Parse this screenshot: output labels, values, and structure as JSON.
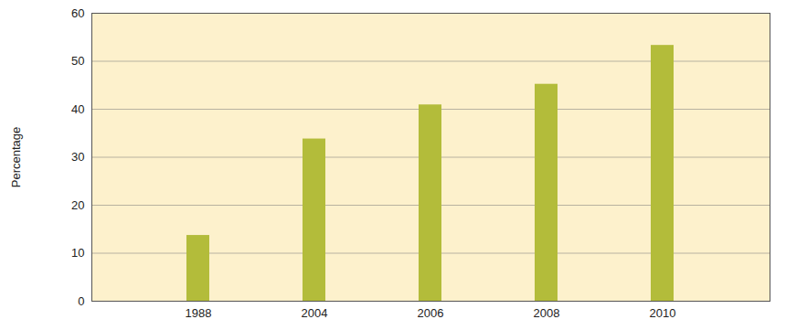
{
  "chart_data": {
    "type": "bar",
    "y_label": "Percentage",
    "categories": [
      "1988",
      "2004",
      "2006",
      "2008",
      "2010"
    ],
    "values": [
      13.7,
      33.8,
      40.9,
      45.2,
      53.3
    ],
    "color": "#b3bc3a",
    "ylim": [
      0,
      60
    ],
    "yticks": [
      0,
      10,
      20,
      30,
      40,
      50,
      60
    ],
    "grid": true
  }
}
